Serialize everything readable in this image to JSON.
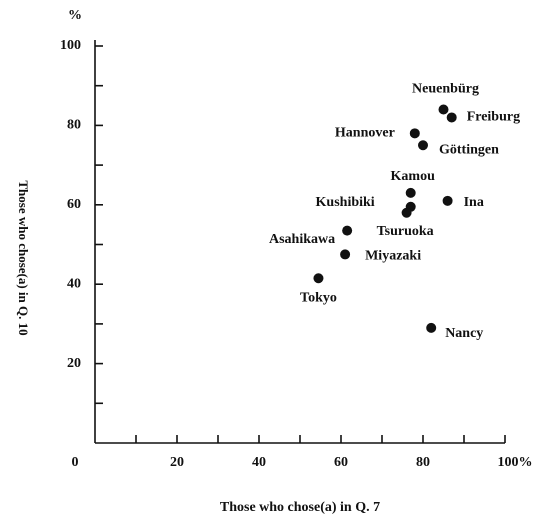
{
  "chart_data": {
    "type": "scatter",
    "xlabel": "Those who chose(a) in Q. 7",
    "ylabel": "Those who chose(a) in Q. 10",
    "yunit": "%",
    "xlim": [
      0,
      100
    ],
    "ylim": [
      0,
      100
    ],
    "xticks": [
      {
        "value": 0,
        "label": "0"
      },
      20,
      40,
      60,
      80,
      {
        "value": 100,
        "label": "100%"
      }
    ],
    "xminorticks": [
      10,
      30,
      50,
      70,
      90
    ],
    "yticks": [
      20,
      40,
      60,
      80,
      100
    ],
    "yminorticks": [
      10,
      30,
      50,
      70,
      90
    ],
    "color": "#111111",
    "points": [
      {
        "label": "Neuenbürg",
        "x": 85,
        "y": 84
      },
      {
        "label": "Freiburg",
        "x": 87,
        "y": 82
      },
      {
        "label": "Hannover",
        "x": 78,
        "y": 78
      },
      {
        "label": "Göttingen",
        "x": 80,
        "y": 75
      },
      {
        "label": "Kamou",
        "x": 77,
        "y": 63
      },
      {
        "label": "Kushibiki",
        "x": 77,
        "y": 59.5
      },
      {
        "label": "Tsuruoka",
        "x": 76,
        "y": 58
      },
      {
        "label": "Ina",
        "x": 86,
        "y": 61
      },
      {
        "label": "Asahikawa",
        "x": 61.5,
        "y": 53.5
      },
      {
        "label": "Miyazaki",
        "x": 61,
        "y": 47.5
      },
      {
        "label": "Tokyo",
        "x": 54.5,
        "y": 41.5
      },
      {
        "label": "Nancy",
        "x": 82,
        "y": 29
      }
    ]
  }
}
